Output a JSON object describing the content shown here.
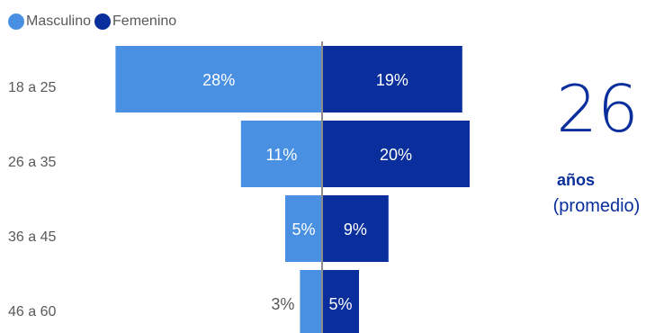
{
  "legend": {
    "male_label": "Masculino",
    "female_label": "Femenino"
  },
  "colors": {
    "male": "#4a90e2",
    "female": "#0a2f9c",
    "axis": "#8c8c8c",
    "category_text": "#595959"
  },
  "summary": {
    "average_value": "26",
    "average_unit": "años",
    "average_note": "(promedio)"
  },
  "chart_data": {
    "type": "bar",
    "orientation": "horizontal-diverging",
    "categories": [
      "18 a 25",
      "26 a 35",
      "36 a 45",
      "46 a 60"
    ],
    "series": [
      {
        "name": "Masculino",
        "values": [
          28,
          11,
          5,
          3
        ],
        "labels": [
          "28%",
          "11%",
          "5%",
          "3%"
        ]
      },
      {
        "name": "Femenino",
        "values": [
          19,
          20,
          9,
          5
        ],
        "labels": [
          "19%",
          "20%",
          "9%",
          "5%"
        ]
      }
    ],
    "legend_position": "top-left",
    "grid": false
  }
}
